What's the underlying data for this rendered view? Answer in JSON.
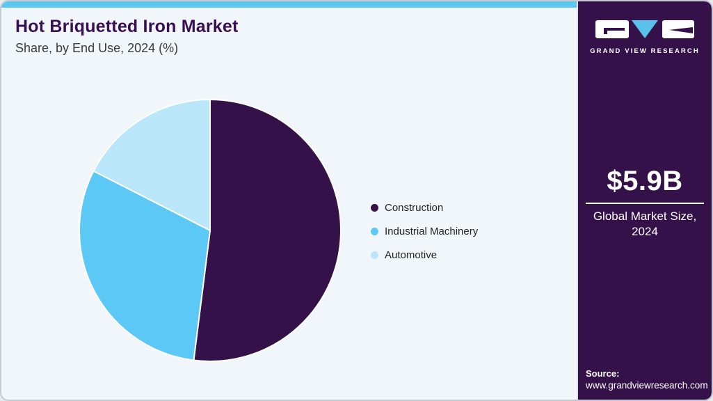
{
  "header": {
    "title": "Hot Briquetted Iron Market",
    "subtitle": "Share, by End Use, 2024 (%)"
  },
  "chart_data": {
    "type": "pie",
    "title": "Hot Briquetted Iron Market Share, by End Use, 2024 (%)",
    "categories": [
      "Construction",
      "Industrial Machinery",
      "Automotive"
    ],
    "values": [
      52,
      30.5,
      17.5
    ],
    "unit": "%",
    "colors": [
      "#341149",
      "#5bc8f5",
      "#bae6fa"
    ],
    "start_angle_deg": 0,
    "direction": "clockwise",
    "legend_position": "right",
    "data_labels_shown": false
  },
  "sidebar": {
    "brand": "GRAND VIEW RESEARCH",
    "market_size": "$5.9B",
    "market_size_label": "Global Market Size, 2024",
    "source_label": "Source:",
    "source_url": "www.grandviewresearch.com",
    "background": "#341149"
  },
  "colors": {
    "accent_bar": "#5bc8f2",
    "card_background": "#f1f6fa",
    "title_text": "#390f54",
    "subtitle_text": "#3a3a3a",
    "legend_text": "#222222",
    "logo_triangle": "#58c0ea"
  }
}
